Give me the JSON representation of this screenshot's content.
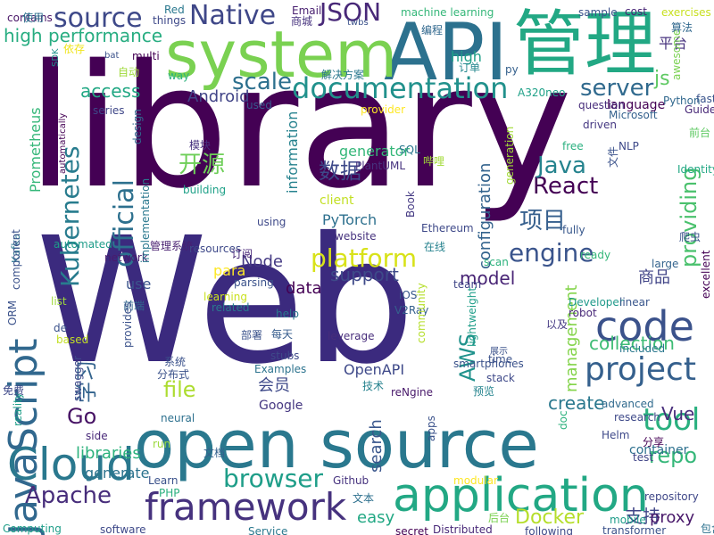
{
  "words": [
    {
      "text": "library",
      "color": "#440154"
    },
    {
      "text": "Web",
      "color": "#3b2a7e"
    },
    {
      "text": "open source",
      "color": "#2a788e"
    },
    {
      "text": "API",
      "color": "#2c718e"
    },
    {
      "text": "管理",
      "color": "#22a884"
    },
    {
      "text": "system",
      "color": "#7ad151"
    },
    {
      "text": "application",
      "color": "#22a884"
    },
    {
      "text": "framework",
      "color": "#46327e"
    },
    {
      "text": "code",
      "color": "#3b528b"
    },
    {
      "text": "project",
      "color": "#35608d"
    },
    {
      "text": "documentation",
      "color": "#21918c"
    },
    {
      "text": "Cloud",
      "color": "#2a788e"
    },
    {
      "text": "JavaScript",
      "color": "#31688e"
    },
    {
      "text": "source",
      "color": "#3e4989"
    },
    {
      "text": "Native",
      "color": "#3f4788"
    },
    {
      "text": "JSON",
      "color": "#482878"
    },
    {
      "text": "Kubernetes",
      "color": "#287c8e"
    },
    {
      "text": "official",
      "color": "#2d708e"
    },
    {
      "text": "tool",
      "color": "#2ab07f"
    },
    {
      "text": "platform",
      "color": "#d8e219"
    },
    {
      "text": "browser",
      "color": "#1f9e89"
    },
    {
      "text": "Apache",
      "color": "#472d7b"
    },
    {
      "text": "Docker",
      "color": "#b5de2b"
    },
    {
      "text": "Go",
      "color": "#471365"
    },
    {
      "text": "file",
      "color": "#addc30"
    },
    {
      "text": "engine",
      "color": "#3a548c"
    },
    {
      "text": "providing",
      "color": "#4ac16d"
    },
    {
      "text": "React",
      "color": "#440154"
    },
    {
      "text": "Java",
      "color": "#25838e"
    },
    {
      "text": "scale",
      "color": "#2d708e"
    },
    {
      "text": "server",
      "color": "#306a8e"
    },
    {
      "text": "js",
      "color": "#5ec962"
    },
    {
      "text": "repo",
      "color": "#35b779"
    },
    {
      "text": "开源",
      "color": "#6ece58"
    },
    {
      "text": "数据",
      "color": "#3e4989"
    },
    {
      "text": "项目",
      "color": "#355f8d"
    },
    {
      "text": "high performance",
      "color": "#27ad81"
    },
    {
      "text": "high",
      "color": "#1fa088"
    },
    {
      "text": "平台",
      "color": "#46327e"
    },
    {
      "text": "Android",
      "color": "#414487"
    },
    {
      "text": "access",
      "color": "#22a884"
    },
    {
      "text": "model",
      "color": "#482475"
    },
    {
      "text": "support",
      "color": "#3e4a89"
    },
    {
      "text": "data",
      "color": "#440154"
    },
    {
      "text": "management",
      "color": "#84d44b"
    },
    {
      "text": "collection",
      "color": "#3dbc74"
    },
    {
      "text": "create",
      "color": "#2a788e"
    },
    {
      "text": "AWS",
      "color": "#20928c"
    },
    {
      "text": "商品",
      "color": "#414487"
    },
    {
      "text": "container",
      "color": "#2d708e"
    },
    {
      "text": "支持",
      "color": "#404688"
    },
    {
      "text": "proxy",
      "color": "#48186a"
    },
    {
      "text": "Vue",
      "color": "#472d7b"
    },
    {
      "text": "OpenAPI",
      "color": "#3e4989"
    },
    {
      "text": "search",
      "color": "#39568c"
    },
    {
      "text": "configuration",
      "color": "#33638d"
    },
    {
      "text": "information",
      "color": "#26828e"
    },
    {
      "text": "generator",
      "color": "#35b779"
    },
    {
      "text": "Node",
      "color": "#443983"
    },
    {
      "text": "para",
      "color": "#fde725"
    },
    {
      "text": "use",
      "color": "#3a548c"
    },
    {
      "text": "libraries",
      "color": "#2db27d"
    },
    {
      "text": "generate",
      "color": "#2c738e"
    },
    {
      "text": "easy",
      "color": "#22a884"
    },
    {
      "text": "学习",
      "color": "#33638d"
    },
    {
      "text": "会员",
      "color": "#3e4989"
    },
    {
      "text": "Google",
      "color": "#453781"
    },
    {
      "text": "Prometheus",
      "color": "#35b779"
    },
    {
      "text": "automated",
      "color": "#1e9c89"
    },
    {
      "text": "network",
      "color": "#481b6d"
    },
    {
      "text": "SQL",
      "color": "#2a788e"
    },
    {
      "text": "PyTorch",
      "color": "#2d708e"
    },
    {
      "text": "client",
      "color": "#c2df23"
    },
    {
      "text": "Book",
      "color": "#443983"
    },
    {
      "text": "building",
      "color": "#1fa188"
    },
    {
      "text": "design",
      "color": "#31688e"
    },
    {
      "text": "driven",
      "color": "#453882"
    },
    {
      "text": "free",
      "color": "#2ab07f"
    },
    {
      "text": "Microsoft",
      "color": "#34618d"
    },
    {
      "text": "language",
      "color": "#440154"
    },
    {
      "text": "machine learning",
      "color": "#35b779"
    },
    {
      "text": "Ethereum",
      "color": "#3e4989"
    },
    {
      "text": "Python",
      "color": "#31688e"
    },
    {
      "text": "fast",
      "color": "#3a548c"
    },
    {
      "text": "Guide",
      "color": "#482878"
    },
    {
      "text": "awesome",
      "color": "#7ad151"
    },
    {
      "text": "exercises",
      "color": "#c8e020"
    },
    {
      "text": "算法",
      "color": "#31688e"
    },
    {
      "text": "A320neo",
      "color": "#1fa188"
    },
    {
      "text": "question",
      "color": "#472d7b"
    },
    {
      "text": "series",
      "color": "#3f4788"
    },
    {
      "text": "used",
      "color": "#38588c"
    },
    {
      "text": "provider",
      "color": "#fde725"
    },
    {
      "text": "sample",
      "color": "#3b528b"
    },
    {
      "text": "cost",
      "color": "#482475"
    },
    {
      "text": "Red",
      "color": "#2a788e"
    },
    {
      "text": "things",
      "color": "#3e4989"
    },
    {
      "text": "Email",
      "color": "#481f70"
    },
    {
      "text": "商城",
      "color": "#46327e"
    },
    {
      "text": "编程",
      "color": "#31688e"
    },
    {
      "text": "way",
      "color": "#2db27d"
    },
    {
      "text": "multi",
      "color": "#440154"
    },
    {
      "text": "自动",
      "color": "#9fda3a"
    },
    {
      "text": "依存",
      "color": "#f0e51c"
    },
    {
      "text": "解决方案",
      "color": "#2a788e"
    },
    {
      "text": "订单",
      "color": "#24878e"
    },
    {
      "text": "bat",
      "color": "#3b528b"
    },
    {
      "text": "contains",
      "color": "#481467"
    },
    {
      "text": "使用",
      "color": "#2c728e"
    },
    {
      "text": "SDK",
      "color": "#20928c"
    },
    {
      "text": "NLP",
      "color": "#3e4989"
    },
    {
      "text": "前台",
      "color": "#5ec962"
    },
    {
      "text": "Identity",
      "color": "#22a884"
    },
    {
      "text": "爬虫",
      "color": "#3b528b"
    },
    {
      "text": "excellent",
      "color": "#440154"
    },
    {
      "text": "large",
      "color": "#33638d"
    },
    {
      "text": "ready",
      "color": "#35b779"
    },
    {
      "text": "fully",
      "color": "#38588c"
    },
    {
      "text": "哔哩",
      "color": "#a2da37"
    },
    {
      "text": "website",
      "color": "#46327e"
    },
    {
      "text": "scan",
      "color": "#2db27d"
    },
    {
      "text": "在线",
      "color": "#26828e"
    },
    {
      "text": "team",
      "color": "#404688"
    },
    {
      "text": "iOS",
      "color": "#38598c"
    },
    {
      "text": "Developer",
      "color": "#1f9a8a"
    },
    {
      "text": "linear",
      "color": "#39568c"
    },
    {
      "text": "以及",
      "color": "#443983"
    },
    {
      "text": "robot",
      "color": "#482878"
    },
    {
      "text": "模块",
      "color": "#46307e"
    },
    {
      "text": "管理系统",
      "color": "#481f70"
    },
    {
      "text": "resources",
      "color": "#3e4989"
    },
    {
      "text": "订阅",
      "color": "#482677"
    },
    {
      "text": "parsing",
      "color": "#3b528b"
    },
    {
      "text": "learning",
      "color": "#cae11f"
    },
    {
      "text": "related",
      "color": "#2a788e"
    },
    {
      "text": "help",
      "color": "#2a788e"
    },
    {
      "text": "每天",
      "color": "#365c8d"
    },
    {
      "text": "leverage",
      "color": "#472d7b"
    },
    {
      "text": "V2Ray",
      "color": "#35608d"
    },
    {
      "text": "time",
      "color": "#3b528b"
    },
    {
      "text": "included",
      "color": "#2a788e"
    },
    {
      "text": "stack",
      "color": "#3e4989"
    },
    {
      "text": "展示",
      "color": "#3b528b"
    },
    {
      "text": "预览",
      "color": "#25848e"
    },
    {
      "text": "Helm",
      "color": "#3e4989"
    },
    {
      "text": "技术",
      "color": "#26828e"
    },
    {
      "text": "advanced",
      "color": "#306a8e"
    },
    {
      "text": "research",
      "color": "#3e4989"
    },
    {
      "text": "分享",
      "color": "#440154"
    },
    {
      "text": "test",
      "color": "#414487"
    },
    {
      "text": "doc",
      "color": "#2db27d"
    },
    {
      "text": "reNgine",
      "color": "#48186a"
    },
    {
      "text": "Examples",
      "color": "#2c738e"
    },
    {
      "text": "stubs",
      "color": "#3e4989"
    },
    {
      "text": "系统",
      "color": "#3b528b"
    },
    {
      "text": "分布式",
      "color": "#3b528b"
    },
    {
      "text": "部署",
      "color": "#3b528b"
    },
    {
      "text": "neural",
      "color": "#2d708e"
    },
    {
      "text": "run",
      "color": "#9bd93c"
    },
    {
      "text": "文档",
      "color": "#34618d"
    },
    {
      "text": "Learn",
      "color": "#3b528b"
    },
    {
      "text": "PHP",
      "color": "#2ab07f"
    },
    {
      "text": "Github",
      "color": "#46327e"
    },
    {
      "text": "文本",
      "color": "#2d708e"
    },
    {
      "text": "后台",
      "color": "#7ad151"
    },
    {
      "text": "repository",
      "color": "#3f4788"
    },
    {
      "text": "mobile",
      "color": "#1e9c89"
    },
    {
      "text": "transformer",
      "color": "#3b528b"
    },
    {
      "text": "包含",
      "color": "#2c718e"
    },
    {
      "text": "software",
      "color": "#3e4989"
    },
    {
      "text": "Service",
      "color": "#2a788e"
    },
    {
      "text": "secret",
      "color": "#440154"
    },
    {
      "text": "Distributed",
      "color": "#482878"
    },
    {
      "text": "following",
      "color": "#3e4989"
    },
    {
      "text": "Computing",
      "color": "#1f9e89"
    },
    {
      "text": "side",
      "color": "#482878"
    },
    {
      "text": "swagger",
      "color": "#3e4989"
    },
    {
      "text": "reality",
      "color": "#1f9e89"
    },
    {
      "text": "免费",
      "color": "#3e4989"
    },
    {
      "text": "Kafka",
      "color": "#2a788e"
    },
    {
      "text": "component",
      "color": "#3b528b"
    },
    {
      "text": "ORM",
      "color": "#3b528b"
    },
    {
      "text": "de",
      "color": "#3b528b"
    },
    {
      "text": "list",
      "color": "#9fda3a"
    },
    {
      "text": "前端",
      "color": "#31688e"
    },
    {
      "text": "based",
      "color": "#c2df23"
    },
    {
      "text": "provides",
      "color": "#3b528b"
    },
    {
      "text": "implementation",
      "color": "#2a788e"
    },
    {
      "text": "automatically",
      "color": "#440154"
    },
    {
      "text": "using",
      "color": "#3e4989"
    },
    {
      "text": "PlantUML",
      "color": "#46327e"
    },
    {
      "text": "generation",
      "color": "#a2da37"
    },
    {
      "text": "community",
      "color": "#b5de2b"
    },
    {
      "text": "lightweight",
      "color": "#1f9e89"
    },
    {
      "text": "smartphones",
      "color": "#3b528b"
    },
    {
      "text": "modular",
      "color": "#fde725"
    },
    {
      "text": "apps",
      "color": "#3b528b"
    },
    {
      "text": "py",
      "color": "#35608d"
    },
    {
      "text": "twbs",
      "color": "#3b528b"
    },
    {
      "text": "文件",
      "color": "#3b528b"
    }
  ]
}
